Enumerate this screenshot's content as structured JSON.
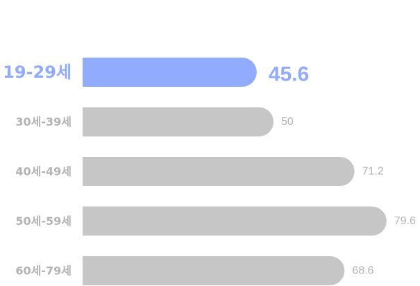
{
  "chart_data": {
    "type": "bar",
    "orientation": "horizontal",
    "categories": [
      "19-29세",
      "30세-39세",
      "40세-49세",
      "50세-59세",
      "60세-79세"
    ],
    "values": [
      45.6,
      50,
      71.2,
      79.6,
      68.6
    ],
    "value_labels": [
      "45.6",
      "50",
      "71.2",
      "79.6",
      "68.6"
    ],
    "highlight_index": 0,
    "xlim": [
      0,
      88
    ],
    "grid": false,
    "legend": "none"
  },
  "colors": {
    "highlight": "#91abff",
    "bar": "#c6c6c6",
    "label": "#b3b3b3"
  }
}
